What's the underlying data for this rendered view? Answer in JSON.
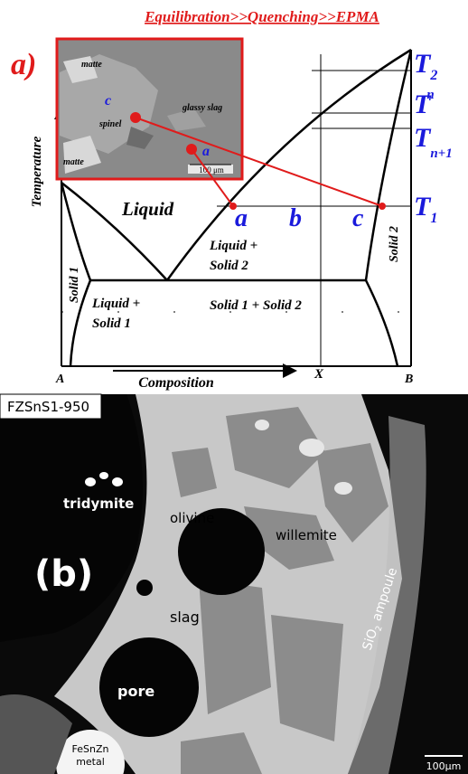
{
  "panel_a": {
    "title": "Equilibration>>Quenching>>EPMA",
    "label": "a)",
    "y_axis": "Temperature",
    "x_axis": "Composition",
    "x_ends": {
      "left": "A",
      "right": "B",
      "mid": "X"
    },
    "temperatures": {
      "t2": {
        "base": "T",
        "sub": "2"
      },
      "tn": {
        "base": "T",
        "sup": "n"
      },
      "tn1": {
        "base": "T",
        "sub": "n+1"
      },
      "t1": {
        "base": "T",
        "sub": "1"
      }
    },
    "points": {
      "a": "a",
      "b": "b",
      "c": "c"
    },
    "regions": {
      "liquid": "Liquid",
      "liquid_solid2": [
        "Liquid +",
        "Solid 2"
      ],
      "liquid_solid1": [
        "Liquid +",
        "Solid 1"
      ],
      "solid1_solid2": "Solid 1 + Solid 2",
      "solid1": "Solid 1",
      "solid2": "Solid 2"
    },
    "inset": {
      "matte_top": "matte",
      "point_c": "c",
      "spinel": "spinel",
      "glassy_slag": "glassy slag",
      "point_a": "a",
      "matte_bottom": "matte",
      "scale": "100 μm"
    }
  },
  "panel_b": {
    "sample": "FZSnS1-950",
    "label": "(b)",
    "phases": {
      "tridymite": "tridymite",
      "olivine": "olivine",
      "willemite": "willemite",
      "slag": "slag",
      "pore": "pore",
      "metal": [
        "FeSnZn",
        "metal"
      ]
    },
    "ampoule": {
      "base": "SiO",
      "sub": "2",
      "rest": " ampoule"
    },
    "scale": "100μm"
  }
}
